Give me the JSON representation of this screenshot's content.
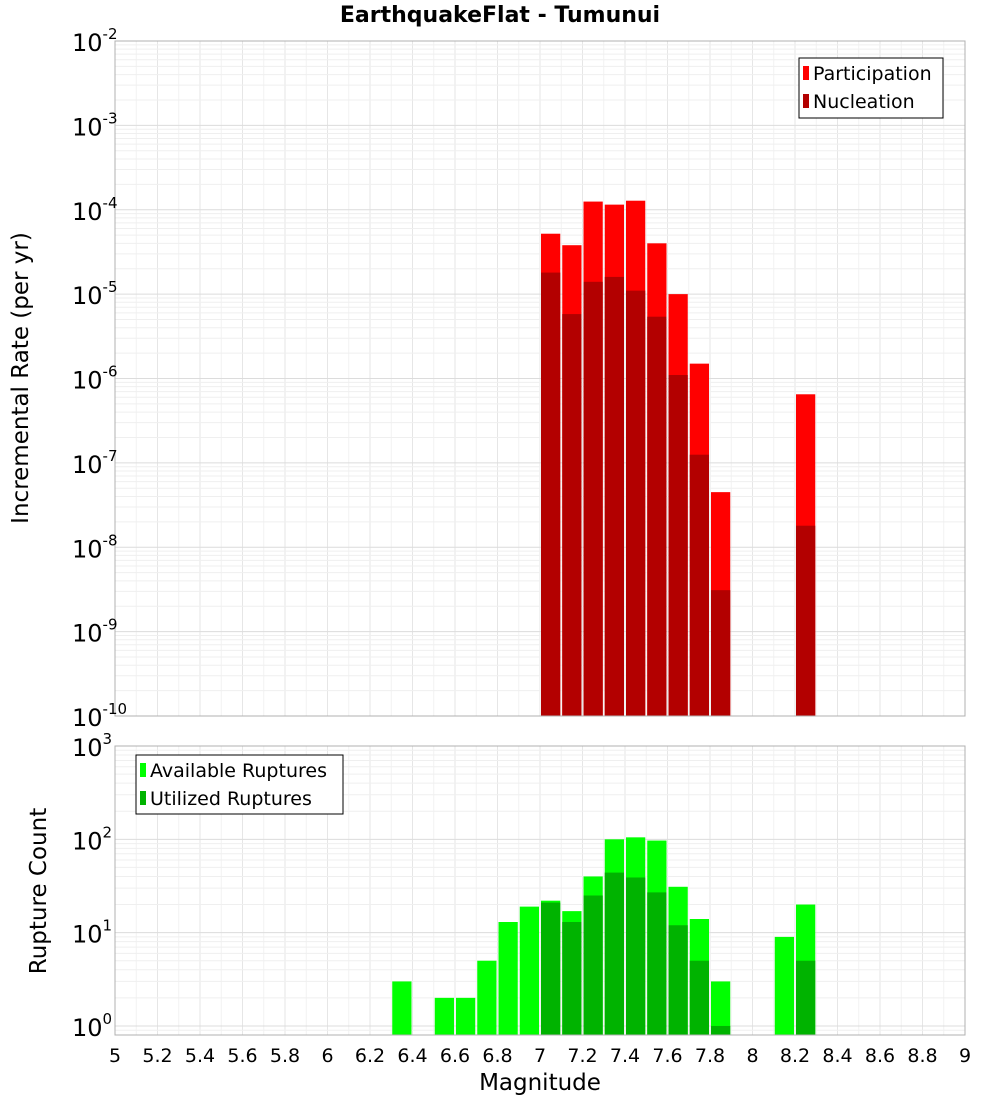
{
  "chart_data": [
    {
      "type": "bar",
      "title": "EarthquakeFlat - Tumunui",
      "ylabel": "Incremental Rate (per yr)",
      "xlabel": "",
      "xlim": [
        5,
        9
      ],
      "ylim": [
        1e-10,
        0.01
      ],
      "yscale": "log",
      "ytick_exponents": [
        "-10",
        "-9",
        "-8",
        "-7",
        "-6",
        "-5",
        "-4",
        "-3",
        "-2"
      ],
      "grid": true,
      "legend_position": "top-right",
      "bar_width": 0.1,
      "x": [
        7.05,
        7.15,
        7.25,
        7.35,
        7.45,
        7.55,
        7.65,
        7.75,
        7.85,
        8.25
      ],
      "series": [
        {
          "name": "Participation",
          "color": "#ff0000",
          "values": [
            5.2e-05,
            3.8e-05,
            0.000125,
            0.000115,
            0.000128,
            4e-05,
            1e-05,
            1.5e-06,
            4.5e-08,
            6.5e-07
          ]
        },
        {
          "name": "Nucleation",
          "color": "#b30000",
          "values": [
            1.8e-05,
            5.8e-06,
            1.4e-05,
            1.6e-05,
            1.1e-05,
            5.4e-06,
            1.1e-06,
            1.25e-07,
            3.1e-09,
            1.8e-08
          ]
        }
      ]
    },
    {
      "type": "bar",
      "title": "",
      "ylabel": "Rupture Count",
      "xlabel": "Magnitude",
      "xlim": [
        5,
        9
      ],
      "ylim": [
        0.8,
        1000
      ],
      "yscale": "log",
      "ytick_exponents": [
        "0",
        "1",
        "2",
        "3"
      ],
      "xticks": [
        "5",
        "5.2",
        "5.4",
        "5.6",
        "5.8",
        "6",
        "6.2",
        "6.4",
        "6.6",
        "6.8",
        "7",
        "7.2",
        "7.4",
        "7.6",
        "7.8",
        "8",
        "8.2",
        "8.4",
        "8.6",
        "8.8",
        "9"
      ],
      "grid": true,
      "legend_position": "top-left",
      "bar_width": 0.1,
      "x": [
        6.35,
        6.55,
        6.65,
        6.75,
        6.85,
        6.95,
        7.05,
        7.15,
        7.25,
        7.35,
        7.45,
        7.55,
        7.65,
        7.75,
        7.85,
        8.15,
        8.25
      ],
      "series": [
        {
          "name": "Available Ruptures",
          "color": "#00ff00",
          "values": [
            3,
            2,
            2,
            5,
            13,
            19,
            22,
            17,
            40,
            100,
            105,
            97,
            31,
            14,
            3,
            9,
            20
          ]
        },
        {
          "name": "Utilized Ruptures",
          "color": "#00b300",
          "values": [
            0,
            0,
            0,
            0,
            0,
            0,
            21,
            13,
            25,
            44,
            39,
            27,
            12,
            5,
            1,
            0,
            5
          ]
        }
      ]
    }
  ]
}
